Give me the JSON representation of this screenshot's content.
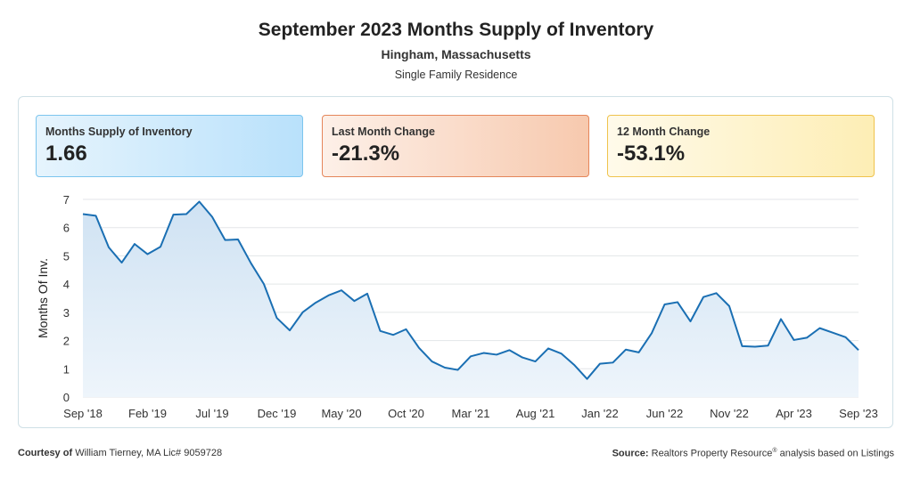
{
  "header": {
    "title": "September 2023 Months Supply of Inventory",
    "location": "Hingham, Massachusetts",
    "property_type": "Single Family Residence"
  },
  "cards": [
    {
      "label": "Months Supply of Inventory",
      "value": "1.66"
    },
    {
      "label": "Last Month Change",
      "value": "-21.3%"
    },
    {
      "label": "12 Month Change",
      "value": "-53.1%"
    }
  ],
  "footer": {
    "courtesy_label": "Courtesy of",
    "courtesy_text": "William Tierney, MA Lic# 9059728",
    "source_label": "Source:",
    "source_text_1": "Realtors Property Resource",
    "source_sup": "®",
    "source_text_2": " analysis based on Listings"
  },
  "chart_data": {
    "type": "area",
    "title": "September 2023 Months Supply of Inventory",
    "xlabel": "",
    "ylabel": "Months Of Inv.",
    "ylim": [
      0,
      7
    ],
    "yticks": [
      "0",
      "1",
      "2",
      "3",
      "4",
      "5",
      "6",
      "7"
    ],
    "xtick_labels": [
      "Sep '18",
      "Feb '19",
      "Jul '19",
      "Dec '19",
      "May '20",
      "Oct '20",
      "Mar '21",
      "Aug '21",
      "Jan '22",
      "Jun '22",
      "Nov '22",
      "Apr '23",
      "Sep '23"
    ],
    "grid": true,
    "colors": {
      "line": "#1a6fb3",
      "fill_top": "#cfe2f3",
      "fill_bottom": "#eef5fb"
    },
    "series": [
      {
        "values": [
          6.48,
          6.42,
          5.3,
          4.76,
          5.42,
          5.06,
          5.32,
          6.46,
          6.48,
          6.92,
          6.38,
          5.56,
          5.58,
          4.74,
          4.0,
          2.8,
          2.36,
          3.0,
          3.34,
          3.6,
          3.78,
          3.4,
          3.66,
          2.34,
          2.2,
          2.4,
          1.74,
          1.26,
          1.04,
          0.96,
          1.44,
          1.56,
          1.5,
          1.66,
          1.4,
          1.26,
          1.72,
          1.54,
          1.14,
          0.64,
          1.18,
          1.22,
          1.68,
          1.58,
          2.26,
          3.28,
          3.36,
          2.68,
          3.54,
          3.68,
          3.22,
          1.8,
          1.78,
          1.82,
          2.76,
          2.02,
          2.1,
          2.44,
          2.28,
          2.12,
          1.66
        ]
      }
    ]
  }
}
